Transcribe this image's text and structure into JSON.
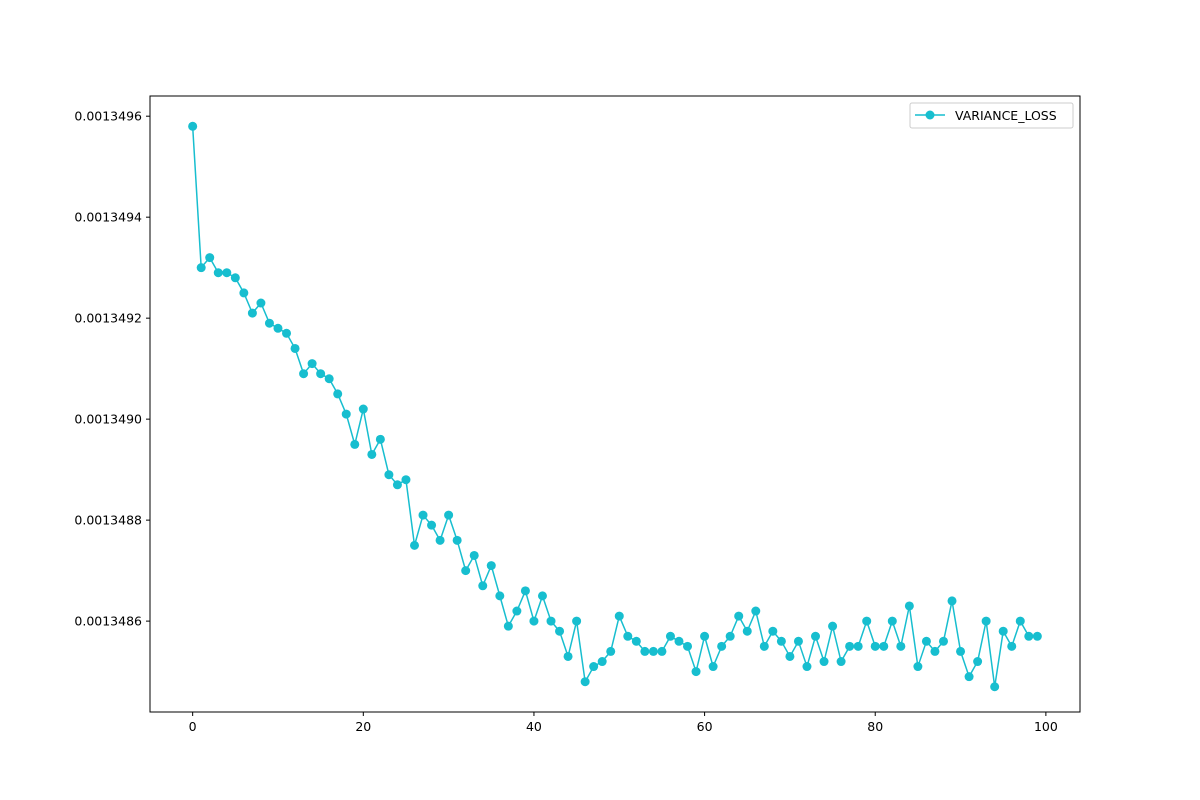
{
  "chart_data": {
    "type": "line",
    "title": "",
    "xlabel": "",
    "ylabel": "",
    "xlim": [
      -5,
      104
    ],
    "ylim": [
      0.00134842,
      0.00134964
    ],
    "x_ticks": [
      0,
      20,
      40,
      60,
      80,
      100
    ],
    "x_tick_labels": [
      "0",
      "20",
      "40",
      "60",
      "80",
      "100"
    ],
    "y_ticks": [
      0.0013486,
      0.0013488,
      0.001349,
      0.0013492,
      0.0013494,
      0.0013496
    ],
    "y_tick_labels": [
      "0.0013486",
      "0.0013488",
      "0.0013490",
      "0.0013492",
      "0.0013494",
      "0.0013496"
    ],
    "grid": false,
    "legend": {
      "position": "top-right"
    },
    "color": "#17becf",
    "series": [
      {
        "name": "VARIANCE_LOSS",
        "x": [
          0,
          1,
          2,
          3,
          4,
          5,
          6,
          7,
          8,
          9,
          10,
          11,
          12,
          13,
          14,
          15,
          16,
          17,
          18,
          19,
          20,
          21,
          22,
          23,
          24,
          25,
          26,
          27,
          28,
          29,
          30,
          31,
          32,
          33,
          34,
          35,
          36,
          37,
          38,
          39,
          40,
          41,
          42,
          43,
          44,
          45,
          46,
          47,
          48,
          49,
          50,
          51,
          52,
          53,
          54,
          55,
          56,
          57,
          58,
          59,
          60,
          61,
          62,
          63,
          64,
          65,
          66,
          67,
          68,
          69,
          70,
          71,
          72,
          73,
          74,
          75,
          76,
          77,
          78,
          79,
          80,
          81,
          82,
          83,
          84,
          85,
          86,
          87,
          88,
          89,
          90,
          91,
          92,
          93,
          94,
          95,
          96,
          97,
          98,
          99
        ],
        "values": [
          0.00134958,
          0.0013493,
          0.00134932,
          0.00134929,
          0.00134929,
          0.00134928,
          0.00134925,
          0.00134921,
          0.00134923,
          0.00134919,
          0.00134918,
          0.00134917,
          0.00134914,
          0.00134909,
          0.00134911,
          0.00134909,
          0.00134908,
          0.00134905,
          0.00134901,
          0.00134895,
          0.00134902,
          0.00134893,
          0.00134896,
          0.00134889,
          0.00134887,
          0.00134888,
          0.00134875,
          0.00134881,
          0.00134879,
          0.00134876,
          0.00134881,
          0.00134876,
          0.0013487,
          0.00134873,
          0.00134867,
          0.00134871,
          0.00134865,
          0.00134859,
          0.00134862,
          0.00134866,
          0.0013486,
          0.00134865,
          0.0013486,
          0.00134858,
          0.00134853,
          0.0013486,
          0.00134848,
          0.00134851,
          0.00134852,
          0.00134854,
          0.00134861,
          0.00134857,
          0.00134856,
          0.00134854,
          0.00134854,
          0.00134854,
          0.00134857,
          0.00134856,
          0.00134855,
          0.0013485,
          0.00134857,
          0.00134851,
          0.00134855,
          0.00134857,
          0.00134861,
          0.00134858,
          0.00134862,
          0.00134855,
          0.00134858,
          0.00134856,
          0.00134853,
          0.00134856,
          0.00134851,
          0.00134857,
          0.00134852,
          0.00134859,
          0.00134852,
          0.00134855,
          0.00134855,
          0.0013486,
          0.00134855,
          0.00134855,
          0.0013486,
          0.00134855,
          0.00134863,
          0.00134851,
          0.00134856,
          0.00134854,
          0.00134856,
          0.00134864,
          0.00134854,
          0.00134849,
          0.00134852,
          0.0013486,
          0.00134847,
          0.00134858,
          0.00134855,
          0.0013486,
          0.00134857,
          0.00134857
        ]
      }
    ]
  }
}
